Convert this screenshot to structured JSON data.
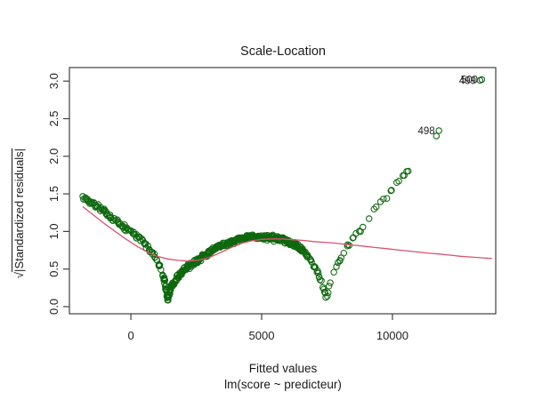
{
  "figure": {
    "title": "Scale-Location",
    "xlabel": "Fitted values",
    "formula": "lm(score ~ predicteur)",
    "ylabel_sqrt": "√",
    "ylabel_inner": "|Standardized residuals|"
  },
  "colors": {
    "points": "#0e680e",
    "smooth_line": "#d9536f",
    "frame": "#404040",
    "text": "#222222"
  },
  "chart_data": {
    "type": "scatter",
    "title": "Scale-Location",
    "xlabel": "Fitted values",
    "ylabel": "sqrt(|Standardized residuals|)",
    "subtitle": "lm(score ~ predicteur)",
    "grid": false,
    "legend": "none",
    "xlim": [
      -2350,
      13950
    ],
    "ylim": [
      -0.095,
      3.18
    ],
    "x_ticks": [
      0,
      5000,
      10000
    ],
    "x_tick_labels": [
      "0",
      "5000",
      "10000"
    ],
    "y_ticks": [
      0.0,
      0.5,
      1.0,
      1.5,
      2.0,
      2.5,
      3.0
    ],
    "y_tick_labels": [
      "0.0",
      "0.5",
      "1.0",
      "1.5",
      "2.0",
      "2.5",
      "3.0"
    ],
    "point_style": {
      "shape": "open-circle",
      "radius": 3.2,
      "stroke_width": 1.05
    },
    "smooth_line": {
      "points": [
        [
          -1840,
          1.33
        ],
        [
          -1400,
          1.21
        ],
        [
          -1000,
          1.1
        ],
        [
          -600,
          1.0
        ],
        [
          -200,
          0.9
        ],
        [
          200,
          0.81
        ],
        [
          600,
          0.73
        ],
        [
          1000,
          0.67
        ],
        [
          1400,
          0.635
        ],
        [
          1800,
          0.615
        ],
        [
          2200,
          0.605
        ],
        [
          2600,
          0.62
        ],
        [
          3000,
          0.655
        ],
        [
          3400,
          0.715
        ],
        [
          3800,
          0.78
        ],
        [
          4200,
          0.84
        ],
        [
          4600,
          0.875
        ],
        [
          5000,
          0.895
        ],
        [
          5400,
          0.9
        ],
        [
          5800,
          0.9
        ],
        [
          6200,
          0.89
        ],
        [
          6600,
          0.88
        ],
        [
          7000,
          0.865
        ],
        [
          7400,
          0.855
        ],
        [
          7800,
          0.845
        ],
        [
          8200,
          0.83
        ],
        [
          8600,
          0.815
        ],
        [
          9000,
          0.8
        ],
        [
          9400,
          0.785
        ],
        [
          9800,
          0.77
        ],
        [
          10200,
          0.755
        ],
        [
          10600,
          0.74
        ],
        [
          11000,
          0.725
        ],
        [
          11400,
          0.71
        ],
        [
          11800,
          0.7
        ],
        [
          12200,
          0.685
        ],
        [
          12600,
          0.67
        ],
        [
          13000,
          0.66
        ],
        [
          13400,
          0.65
        ],
        [
          13800,
          0.64
        ]
      ]
    },
    "scatter_generator": {
      "seed": 13,
      "envelope": [
        [
          -1840,
          1.46
        ],
        [
          -1400,
          1.36
        ],
        [
          -1000,
          1.26
        ],
        [
          -600,
          1.15
        ],
        [
          -200,
          1.04
        ],
        [
          100,
          0.97
        ],
        [
          400,
          0.88
        ],
        [
          700,
          0.77
        ],
        [
          950,
          0.65
        ],
        [
          1150,
          0.5
        ],
        [
          1300,
          0.32
        ],
        [
          1410,
          0.08
        ],
        [
          1520,
          0.25
        ],
        [
          1700,
          0.36
        ],
        [
          1900,
          0.44
        ],
        [
          2150,
          0.52
        ],
        [
          2500,
          0.61
        ],
        [
          2900,
          0.7
        ],
        [
          3300,
          0.78
        ],
        [
          3700,
          0.84
        ],
        [
          4100,
          0.89
        ],
        [
          4500,
          0.92
        ],
        [
          4900,
          0.93
        ],
        [
          5300,
          0.92
        ],
        [
          5700,
          0.895
        ],
        [
          6000,
          0.87
        ],
        [
          6300,
          0.83
        ],
        [
          6600,
          0.74
        ],
        [
          6850,
          0.63
        ],
        [
          7050,
          0.52
        ],
        [
          7250,
          0.36
        ],
        [
          7400,
          0.2
        ],
        [
          7480,
          0.1
        ],
        [
          7600,
          0.3
        ],
        [
          7750,
          0.46
        ],
        [
          7900,
          0.57
        ],
        [
          8150,
          0.72
        ],
        [
          8440,
          0.89
        ],
        [
          8850,
          1.04
        ],
        [
          9250,
          1.27
        ],
        [
          9500,
          1.37
        ],
        [
          9800,
          1.46
        ],
        [
          10150,
          1.63
        ],
        [
          10450,
          1.74
        ],
        [
          10700,
          1.85
        ]
      ],
      "segments": [
        {
          "x0": -1840,
          "x1": 1250,
          "n": 95,
          "jitter": 0.04
        },
        {
          "x0": 1250,
          "x1": 1650,
          "n": 48,
          "jitter": 0.05
        },
        {
          "x0": 1650,
          "x1": 6600,
          "n": 285,
          "jitter": 0.045
        },
        {
          "x0": 6600,
          "x1": 7560,
          "n": 30,
          "jitter": 0.04
        },
        {
          "x0": 7560,
          "x1": 8850,
          "n": 18,
          "jitter": 0.035
        },
        {
          "x0": 9150,
          "x1": 10700,
          "n": 14,
          "jitter": 0.03
        }
      ]
    },
    "labeled_points": [
      {
        "x": 11680,
        "y": 2.27,
        "label": ""
      },
      {
        "x": 11780,
        "y": 2.34,
        "label": "498"
      },
      {
        "x": 13350,
        "y": 3.01,
        "label": "499"
      },
      {
        "x": 13420,
        "y": 3.02,
        "label": "500"
      }
    ]
  }
}
